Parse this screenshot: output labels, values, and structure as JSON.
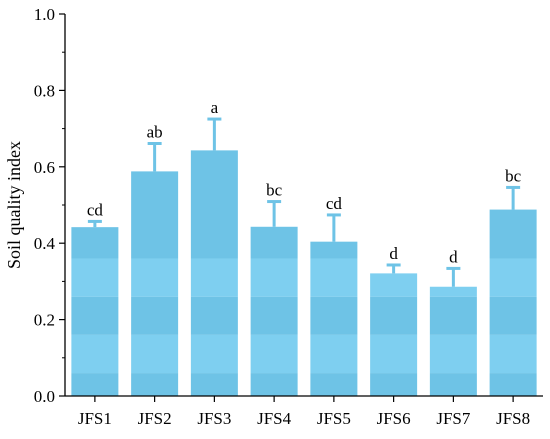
{
  "chart_data": {
    "type": "bar",
    "title": "",
    "xlabel": "",
    "ylabel": "Soil quality index",
    "ylim": [
      0,
      1.0
    ],
    "yticks": [
      "0.0",
      "0.2",
      "0.4",
      "0.6",
      "0.8",
      "1.0"
    ],
    "grid": false,
    "categories": [
      "JFS1",
      "JFS2",
      "JFS3",
      "JFS4",
      "JFS5",
      "JFS6",
      "JFS7",
      "JFS8"
    ],
    "values": [
      0.442,
      0.588,
      0.643,
      0.443,
      0.404,
      0.321,
      0.286,
      0.488
    ],
    "error": [
      0.015,
      0.073,
      0.082,
      0.066,
      0.07,
      0.022,
      0.048,
      0.058
    ],
    "significance": [
      "cd",
      "ab",
      "a",
      "bc",
      "cd",
      "d",
      "d",
      "bc"
    ],
    "colors": {
      "bar_light": "#7ecff0",
      "bar_dark": "#6ec3e6",
      "error_bar": "#6ec3e6",
      "axis": "#000000"
    }
  }
}
